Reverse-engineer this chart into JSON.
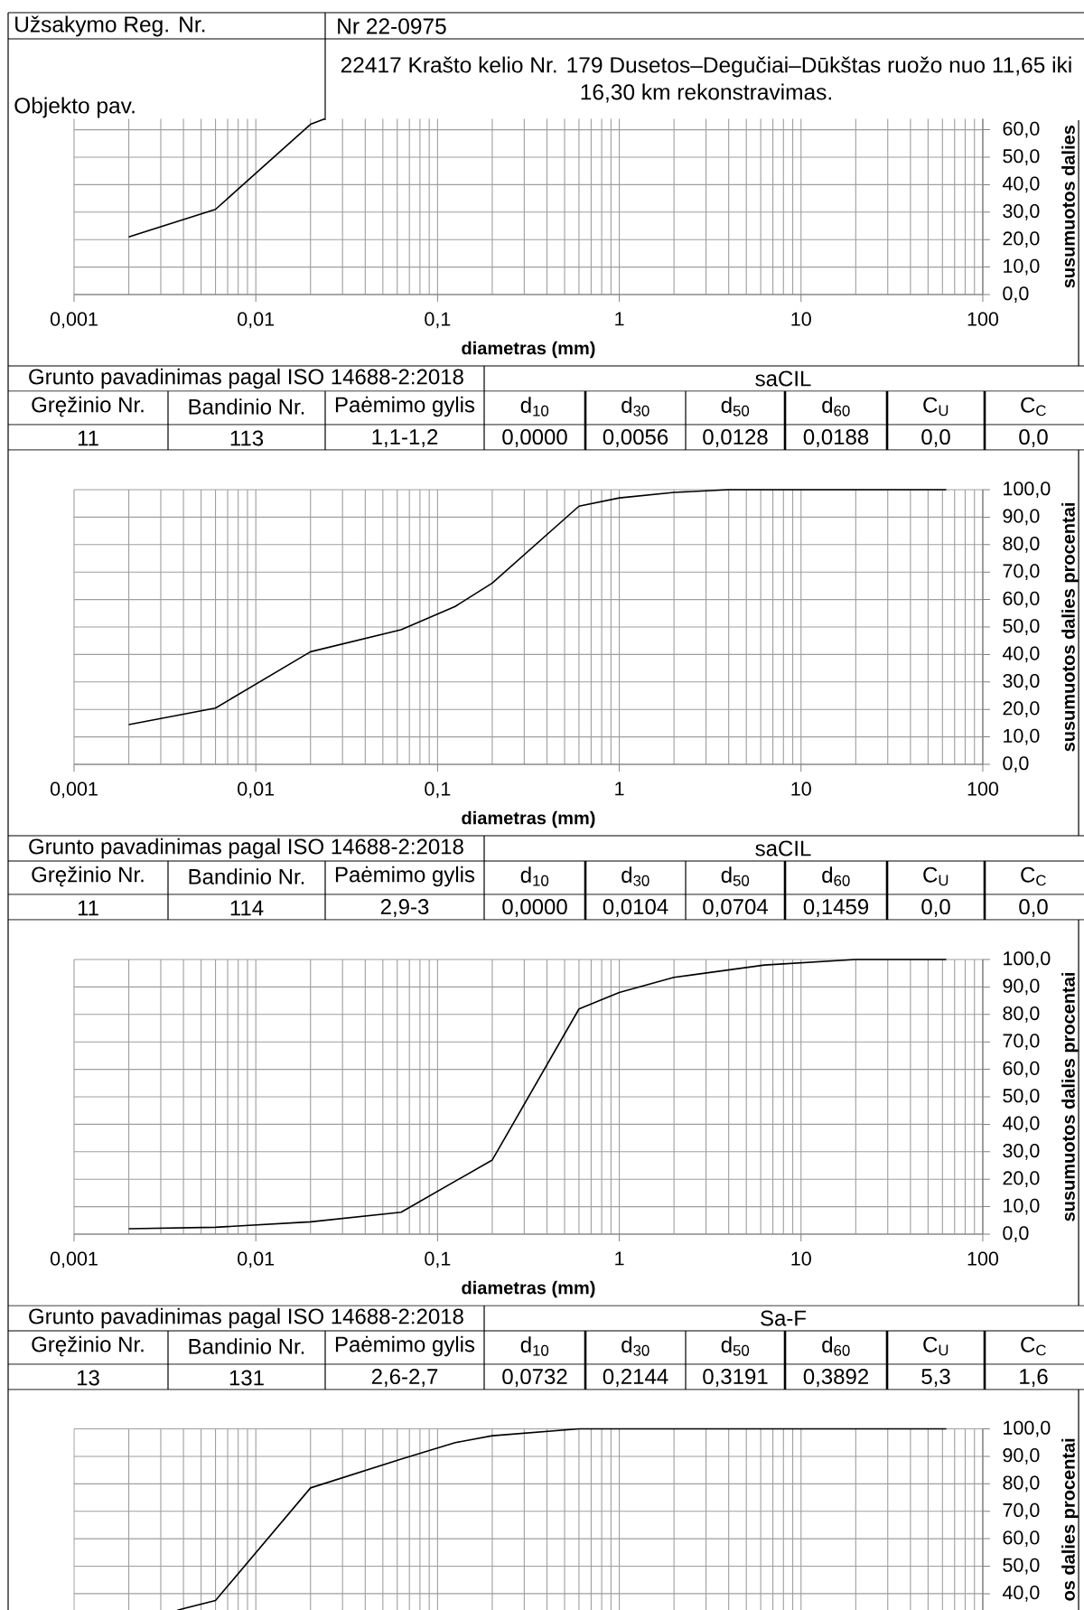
{
  "chart_data": [
    {
      "type": "other",
      "annotations": [
        "Užsakymo Reg. Nr.",
        "Nr 22-0975",
        "Objekto pav.",
        "22417 Krašto kelio Nr. 179 Dusetos–Degučiai–Dūkštas ruožo nuo 11,65 iki 16,30 km rekonstravimas."
      ]
    },
    {
      "type": "line",
      "x": [
        0.002,
        0.006,
        0.02,
        0.024
      ],
      "values": [
        21,
        31,
        62,
        64
      ],
      "color": "#000000",
      "xlim": [
        0.001,
        100
      ],
      "ylim": [
        0,
        64
      ],
      "log": "x",
      "grid": true,
      "xticks": [
        {
          "value": 0.001,
          "label": "0,001"
        },
        {
          "value": 0.01,
          "label": "0,01"
        },
        {
          "value": 0.1,
          "label": "0,1"
        },
        1,
        10,
        100
      ],
      "yticks": [
        {
          "value": 0,
          "label": "0,0"
        },
        {
          "value": 10,
          "label": "10,0"
        },
        {
          "value": 20,
          "label": "20,0"
        },
        {
          "value": 30,
          "label": "30,0"
        },
        {
          "value": 40,
          "label": "40,0"
        },
        {
          "value": 50,
          "label": "50,0"
        },
        {
          "value": 60,
          "label": "60,0"
        }
      ],
      "xlabel": "diametras (mm)",
      "ylabel": "susumuotos dalies"
    },
    {
      "type": "other",
      "annotations": [
        "Grunto pavadinimas pagal ISO 14688-2:2018",
        "saCIL",
        "Gręžinio Nr.",
        "Bandinio Nr.",
        "Paėmimo gylis",
        "d$_{10}$",
        "d$_{30}$",
        "d$_{50}$",
        "d$_{60}$",
        "C$_{U}$",
        "C$_{C}$",
        "11",
        "113",
        "1,1-1,2",
        "0,0000",
        "0,0056",
        "0,0128",
        "0,0188",
        "0,0",
        "0,0"
      ]
    },
    {
      "type": "line",
      "x": [
        0.002,
        0.006,
        0.02,
        0.063,
        0.125,
        0.2,
        0.6,
        1,
        2,
        4,
        20,
        63
      ],
      "values": [
        14.5,
        20.5,
        41,
        49,
        57.5,
        66,
        94,
        97,
        99,
        100,
        100,
        100
      ],
      "color": "#000000",
      "xlim": [
        0.001,
        100
      ],
      "ylim": [
        0,
        100
      ],
      "log": "x",
      "grid": true,
      "xticks": [
        {
          "value": 0.001,
          "label": "0,001"
        },
        {
          "value": 0.01,
          "label": "0,01"
        },
        {
          "value": 0.1,
          "label": "0,1"
        },
        1,
        10,
        100
      ],
      "yticks": [
        {
          "value": 0,
          "label": "0,0"
        },
        {
          "value": 10,
          "label": "10,0"
        },
        {
          "value": 20,
          "label": "20,0"
        },
        {
          "value": 30,
          "label": "30,0"
        },
        {
          "value": 40,
          "label": "40,0"
        },
        {
          "value": 50,
          "label": "50,0"
        },
        {
          "value": 60,
          "label": "60,0"
        },
        {
          "value": 70,
          "label": "70,0"
        },
        {
          "value": 80,
          "label": "80,0"
        },
        {
          "value": 90,
          "label": "90,0"
        },
        {
          "value": 100,
          "label": "100,0"
        }
      ],
      "xlabel": "diametras (mm)",
      "ylabel": "susumuotos dalies procentai"
    },
    {
      "type": "other",
      "annotations": [
        "Grunto pavadinimas pagal ISO 14688-2:2018",
        "saCIL",
        "Gręžinio Nr.",
        "Bandinio Nr.",
        "Paėmimo gylis",
        "d$_{10}$",
        "d$_{30}$",
        "d$_{50}$",
        "d$_{60}$",
        "C$_{U}$",
        "C$_{C}$",
        "11",
        "114",
        "2,9-3",
        "0,0000",
        "0,0104",
        "0,0704",
        "0,1459",
        "0,0",
        "0,0"
      ]
    },
    {
      "type": "line",
      "x": [
        0.002,
        0.006,
        0.02,
        0.063,
        0.2,
        0.6,
        1,
        2,
        6.3,
        20,
        63
      ],
      "values": [
        2,
        2.5,
        4.5,
        8,
        27,
        82,
        88,
        93.5,
        98,
        100,
        100
      ],
      "color": "#000000",
      "xlim": [
        0.001,
        100
      ],
      "ylim": [
        0,
        100
      ],
      "log": "x",
      "grid": true,
      "xticks": [
        {
          "value": 0.001,
          "label": "0,001"
        },
        {
          "value": 0.01,
          "label": "0,01"
        },
        {
          "value": 0.1,
          "label": "0,1"
        },
        1,
        10,
        100
      ],
      "yticks": [
        {
          "value": 0,
          "label": "0,0"
        },
        {
          "value": 10,
          "label": "10,0"
        },
        {
          "value": 20,
          "label": "20,0"
        },
        {
          "value": 30,
          "label": "30,0"
        },
        {
          "value": 40,
          "label": "40,0"
        },
        {
          "value": 50,
          "label": "50,0"
        },
        {
          "value": 60,
          "label": "60,0"
        },
        {
          "value": 70,
          "label": "70,0"
        },
        {
          "value": 80,
          "label": "80,0"
        },
        {
          "value": 90,
          "label": "90,0"
        },
        {
          "value": 100,
          "label": "100,0"
        }
      ],
      "xlabel": "diametras (mm)",
      "ylabel": "susumuotos dalies procentai"
    },
    {
      "type": "other",
      "annotations": [
        "Grunto pavadinimas pagal ISO 14688-2:2018",
        "Sa-F",
        "Gręžinio Nr.",
        "Bandinio Nr.",
        "Paėmimo gylis",
        "d$_{10}$",
        "d$_{30}$",
        "d$_{50}$",
        "d$_{60}$",
        "C$_{U}$",
        "C$_{C}$",
        "13",
        "131",
        "2,6-2,7",
        "0,0732",
        "0,2144",
        "0,3191",
        "0,3892",
        "5,3",
        "1,6"
      ]
    },
    {
      "type": "line",
      "x": [
        0.0037,
        0.006,
        0.02,
        0.063,
        0.125,
        0.2,
        0.6,
        63
      ],
      "values": [
        34,
        37.5,
        78.5,
        89,
        95,
        97.5,
        100,
        100
      ],
      "color": "#000000",
      "xlim": [
        0.001,
        100
      ],
      "ylim": [
        34,
        100
      ],
      "log": "x",
      "grid": true,
      "tick_labels": "y",
      "xticks": [
        0.001,
        0.01,
        0.1,
        1,
        10,
        100
      ],
      "yticks": [
        {
          "value": 40,
          "label": "40,0"
        },
        {
          "value": 50,
          "label": "50,0"
        },
        {
          "value": 60,
          "label": "60,0"
        },
        {
          "value": 70,
          "label": "70,0"
        },
        {
          "value": 80,
          "label": "80,0"
        },
        {
          "value": 90,
          "label": "90,0"
        },
        {
          "value": 100,
          "label": "100,0"
        }
      ],
      "ylabel": "os dalies procentai"
    }
  ]
}
